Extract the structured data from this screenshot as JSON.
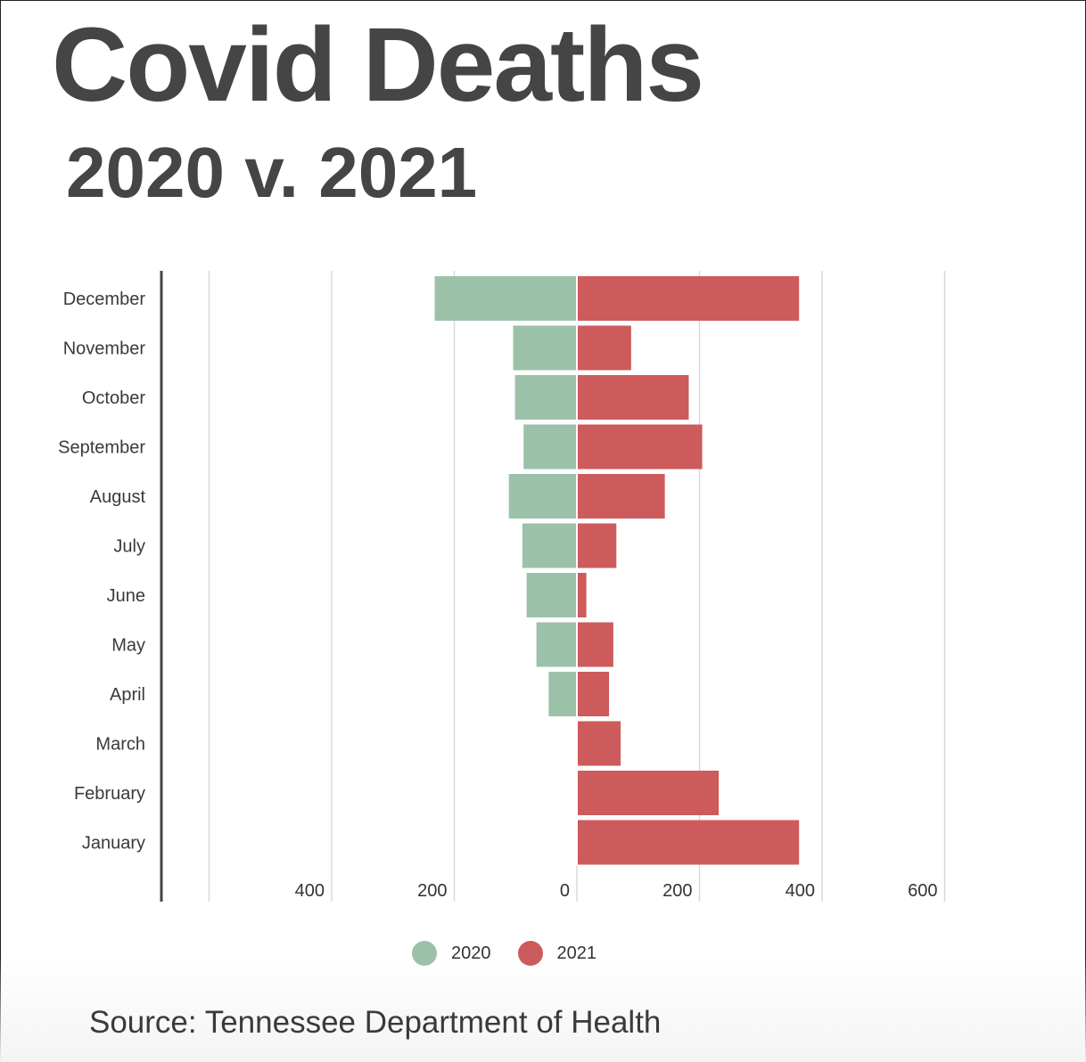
{
  "chart_data": {
    "type": "bar",
    "orientation": "horizontal-diverging",
    "title": "Covid Deaths",
    "subtitle": "2020 v. 2021",
    "categories": [
      "December",
      "November",
      "October",
      "September",
      "August",
      "July",
      "June",
      "May",
      "April",
      "March",
      "February",
      "January"
    ],
    "series": [
      {
        "name": "2020",
        "color": "#9bc2a9",
        "direction": "left",
        "values": [
          232,
          104,
          101,
          87,
          111,
          89,
          82,
          66,
          46,
          0,
          0,
          0
        ]
      },
      {
        "name": "2021",
        "color": "#cd5b5b",
        "direction": "right",
        "values": [
          361,
          87,
          181,
          203,
          142,
          63,
          14,
          58,
          51,
          70,
          230,
          361
        ]
      }
    ],
    "xlim": [
      -675,
      600
    ],
    "x_ticks": [
      {
        "value": -400,
        "label": "400"
      },
      {
        "value": -200,
        "label": "200"
      },
      {
        "value": 0,
        "label": "0"
      },
      {
        "value": 200,
        "label": "200"
      },
      {
        "value": 400,
        "label": "400"
      },
      {
        "value": 600,
        "label": "600"
      }
    ],
    "grid": true,
    "legend": "bottom-center"
  },
  "source": "Source: Tennessee Department of Health"
}
